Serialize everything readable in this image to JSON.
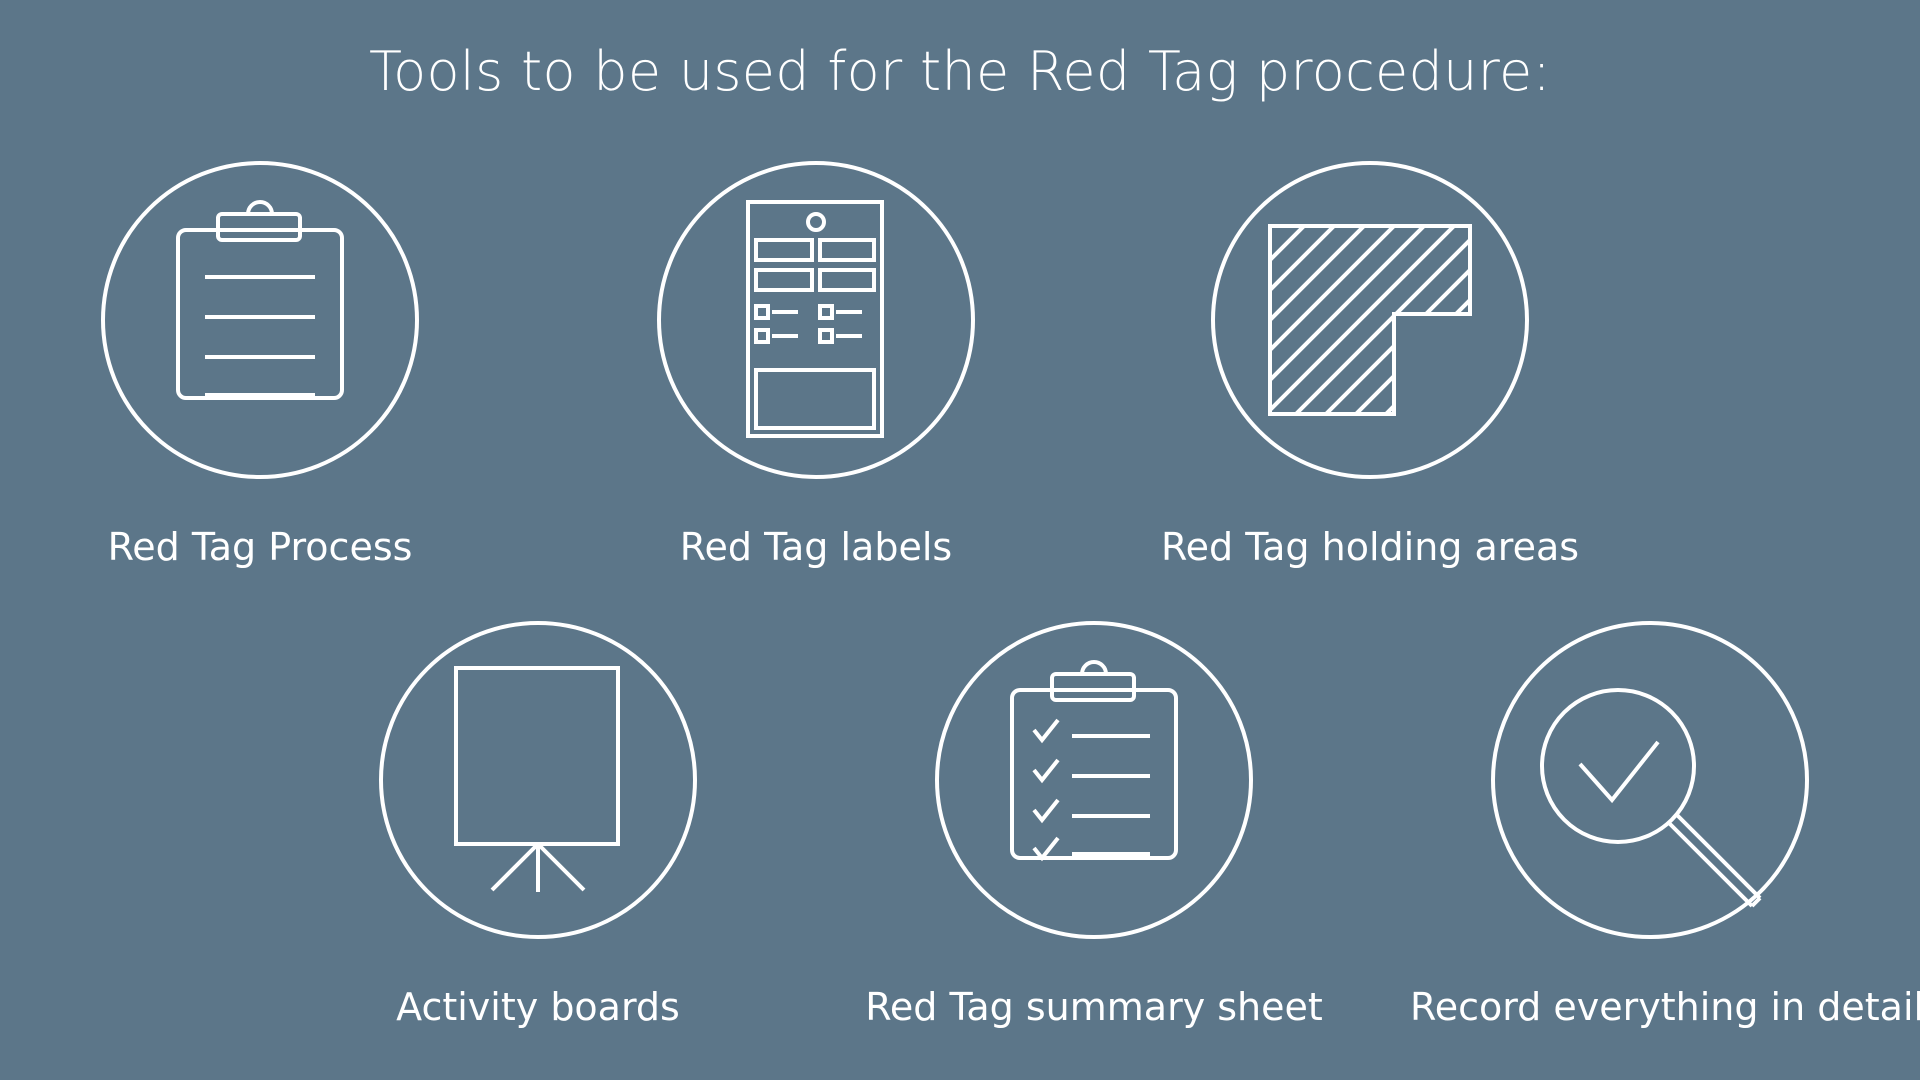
{
  "title": "Tools to be used for the Red Tag procedure:",
  "colors": {
    "background": "#5c7689",
    "foreground": "#ffffff"
  },
  "tools": [
    {
      "label": "Red Tag Process",
      "icon": "clipboard-icon"
    },
    {
      "label": "Red Tag labels",
      "icon": "tag-label-icon"
    },
    {
      "label": "Red Tag holding areas",
      "icon": "hatched-area-icon"
    },
    {
      "label": "Activity boards",
      "icon": "easel-board-icon"
    },
    {
      "label": "Red Tag summary sheet",
      "icon": "checklist-clipboard-icon"
    },
    {
      "label": "Record everything in detail",
      "icon": "magnifier-check-icon"
    }
  ]
}
